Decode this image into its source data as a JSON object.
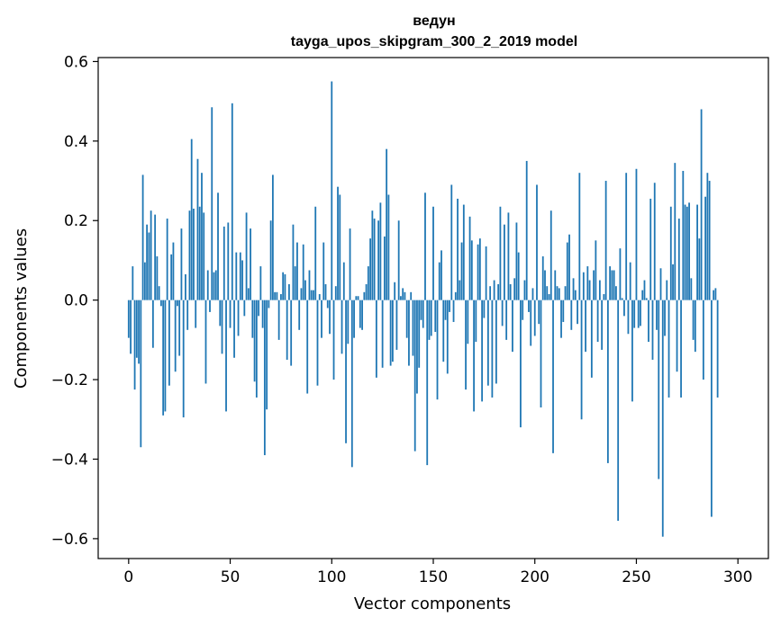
{
  "chart_data": {
    "type": "bar",
    "title": "ведун",
    "subtitle": "tayga_upos_skipgram_300_2_2019 model",
    "xlabel": "Vector components",
    "ylabel": "Components values",
    "xlim": [
      -15,
      315
    ],
    "ylim": [
      -0.65,
      0.61
    ],
    "xticks": [
      0,
      50,
      100,
      150,
      200,
      250,
      300
    ],
    "yticks": [
      0.6,
      0.4,
      0.2,
      0.0,
      -0.2,
      -0.4,
      -0.6
    ],
    "xtick_labels": [
      "0",
      "50",
      "100",
      "150",
      "200",
      "250",
      "300"
    ],
    "ytick_labels": [
      "0.6",
      "0.4",
      "0.2",
      "0.0",
      "−0.2",
      "−0.4",
      "−0.6"
    ],
    "bar_color": "#1f77b4",
    "grid": false,
    "values": [
      -0.095,
      -0.135,
      0.085,
      -0.225,
      -0.145,
      -0.16,
      -0.37,
      0.315,
      0.095,
      0.19,
      0.17,
      0.225,
      -0.12,
      0.215,
      0.11,
      0.035,
      -0.015,
      -0.29,
      -0.28,
      0.205,
      -0.215,
      0.115,
      0.145,
      -0.18,
      -0.015,
      -0.14,
      0.18,
      -0.295,
      0.065,
      -0.075,
      0.225,
      0.405,
      0.23,
      -0.07,
      0.355,
      0.235,
      0.32,
      0.22,
      -0.21,
      0.075,
      -0.03,
      0.485,
      0.07,
      0.075,
      0.27,
      -0.065,
      -0.135,
      0.185,
      -0.28,
      0.195,
      -0.07,
      0.495,
      -0.145,
      0.12,
      -0.09,
      0.12,
      0.1,
      -0.04,
      0.22,
      0.03,
      0.18,
      -0.095,
      -0.205,
      -0.245,
      -0.04,
      0.085,
      -0.07,
      -0.39,
      -0.275,
      -0.02,
      0.2,
      0.315,
      0.02,
      0.02,
      -0.1,
      0.015,
      0.07,
      0.065,
      -0.15,
      0.04,
      -0.165,
      0.19,
      0.085,
      0.145,
      -0.075,
      0.03,
      0.14,
      0.05,
      -0.235,
      0.075,
      0.025,
      0.025,
      0.235,
      -0.215,
      0.015,
      -0.095,
      0.145,
      0.04,
      -0.02,
      -0.085,
      0.55,
      -0.2,
      0.035,
      0.285,
      0.265,
      -0.135,
      0.095,
      -0.36,
      -0.11,
      0.18,
      -0.42,
      -0.095,
      0.01,
      0.01,
      -0.07,
      -0.075,
      0.02,
      0.04,
      0.085,
      0.155,
      0.225,
      0.205,
      -0.195,
      0.2,
      0.245,
      -0.17,
      0.16,
      0.38,
      0.265,
      -0.165,
      -0.155,
      0.045,
      -0.125,
      0.2,
      0.01,
      0.03,
      0.02,
      -0.095,
      -0.165,
      0.02,
      -0.14,
      -0.38,
      -0.235,
      -0.17,
      -0.05,
      -0.07,
      0.27,
      -0.415,
      -0.1,
      -0.09,
      0.235,
      -0.08,
      -0.25,
      0.095,
      0.125,
      -0.155,
      -0.05,
      -0.185,
      -0.03,
      0.29,
      -0.055,
      0.02,
      0.255,
      0.05,
      0.145,
      0.24,
      -0.225,
      -0.11,
      0.21,
      0.15,
      -0.28,
      -0.105,
      0.14,
      0.155,
      -0.255,
      -0.045,
      0.135,
      -0.215,
      0.035,
      -0.245,
      0.05,
      -0.21,
      0.04,
      0.235,
      -0.065,
      0.19,
      -0.1,
      0.22,
      0.04,
      -0.13,
      0.055,
      0.195,
      0.12,
      -0.32,
      -0.05,
      0.05,
      0.35,
      -0.03,
      -0.115,
      0.03,
      -0.09,
      0.29,
      -0.06,
      -0.27,
      0.11,
      0.075,
      0.035,
      0.015,
      0.225,
      -0.385,
      0.075,
      0.035,
      0.03,
      -0.095,
      -0.055,
      0.035,
      0.145,
      0.165,
      -0.075,
      0.055,
      0.025,
      -0.06,
      0.32,
      -0.3,
      0.07,
      -0.13,
      0.085,
      0.05,
      -0.195,
      0.075,
      0.15,
      -0.105,
      0.05,
      -0.125,
      0.015,
      0.3,
      -0.41,
      0.085,
      0.075,
      0.075,
      0.035,
      -0.555,
      0.13,
      0.005,
      -0.04,
      0.32,
      -0.085,
      0.095,
      -0.255,
      -0.07,
      0.33,
      -0.07,
      -0.065,
      0.025,
      0.05,
      0.005,
      -0.105,
      0.255,
      -0.15,
      0.295,
      -0.075,
      -0.45,
      0.08,
      -0.595,
      -0.09,
      0.05,
      -0.245,
      0.235,
      0.09,
      0.345,
      -0.18,
      0.205,
      -0.245,
      0.325,
      0.24,
      0.235,
      0.245,
      0.055,
      -0.1,
      -0.13,
      0.24,
      0.155,
      0.48,
      -0.2,
      0.26,
      0.32,
      0.3,
      -0.545,
      0.025,
      0.03,
      -0.245
    ]
  }
}
